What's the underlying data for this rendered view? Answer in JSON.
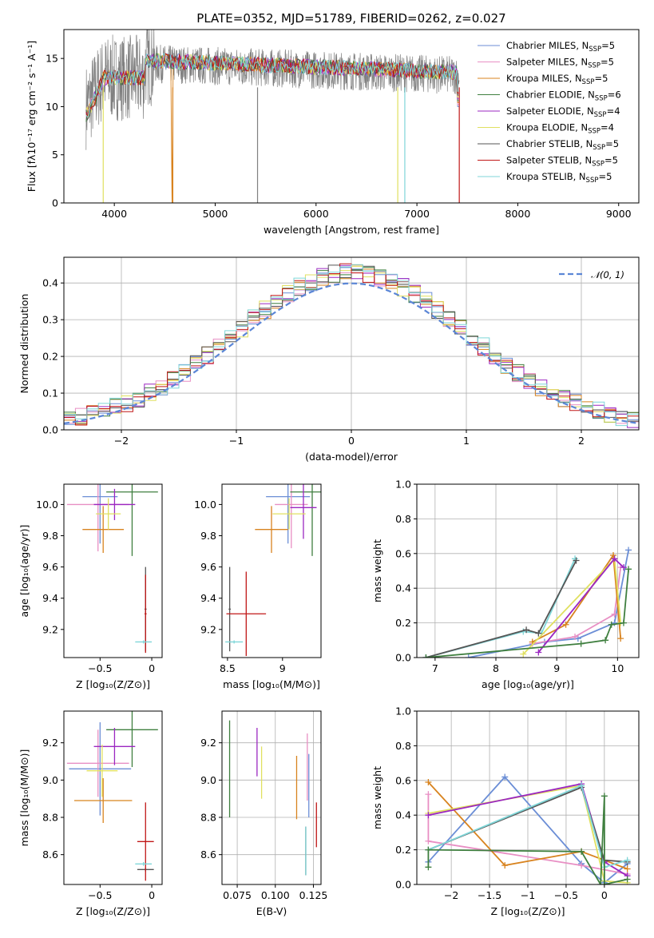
{
  "title": "PLATE=0352, MJD=51789, FIBERID=0262, z=0.027",
  "colors": [
    "#6b8ed6",
    "#e88fc4",
    "#d8831f",
    "#3f7f3f",
    "#9b27c1",
    "#e0e060",
    "#555555",
    "#c01717",
    "#7fd6d8"
  ],
  "chart_data": [
    {
      "id": "spectrum",
      "type": "line",
      "xlabel": "wavelength [Angstrom, rest frame]",
      "ylabel": "Flux [fλ10⁻¹⁷ erg cm⁻² s⁻¹ A⁻¹]",
      "xlim": [
        3500,
        9200
      ],
      "ylim": [
        0,
        18
      ],
      "xticks": [
        4000,
        5000,
        6000,
        7000,
        8000,
        9000
      ],
      "yticks": [
        0,
        5,
        10,
        15
      ],
      "grid": false,
      "legend_position": "top-right",
      "observed_series": {
        "color": "#808080",
        "x_range": [
          3720,
          7420
        ],
        "mean_level": 14.5
      },
      "series": [
        {
          "name": "Chabrier MILES, N",
          "sub": "SSP",
          "suffix": "=5",
          "color": "#6b8ed6"
        },
        {
          "name": "Salpeter MILES, N",
          "sub": "SSP",
          "suffix": "=5",
          "color": "#e88fc4"
        },
        {
          "name": "Kroupa MILES, N",
          "sub": "SSP",
          "suffix": "=5",
          "color": "#d8831f"
        },
        {
          "name": "Chabrier ELODIE, N",
          "sub": "SSP",
          "suffix": "=6",
          "color": "#3f7f3f"
        },
        {
          "name": "Salpeter ELODIE, N",
          "sub": "SSP",
          "suffix": "=4",
          "color": "#9b27c1"
        },
        {
          "name": "Kroupa ELODIE, N",
          "sub": "SSP",
          "suffix": "=4",
          "color": "#e0e060"
        },
        {
          "name": "Chabrier STELIB, N",
          "sub": "SSP",
          "suffix": "=5",
          "color": "#555555"
        },
        {
          "name": "Salpeter STELIB, N",
          "sub": "SSP",
          "suffix": "=5",
          "color": "#c01717"
        },
        {
          "name": "Kroupa STELIB, N",
          "sub": "SSP",
          "suffix": "=5",
          "color": "#7fd6d8"
        }
      ]
    },
    {
      "id": "residuals",
      "type": "histogram",
      "xlabel": "(data-model)/error",
      "ylabel": "Normed distribution",
      "xlim": [
        -2.5,
        2.5
      ],
      "ylim": [
        0,
        0.47
      ],
      "xticks": [
        -2,
        -1,
        0,
        1,
        2
      ],
      "yticks": [
        0.0,
        0.1,
        0.2,
        0.3,
        0.4
      ],
      "grid": true,
      "bin_width": 0.1,
      "legend_position": "top-right",
      "reference": {
        "label": "𝒩(0, 1)",
        "color": "#5b86d6",
        "mean": 0,
        "sigma": 1
      }
    },
    {
      "id": "age-vs-z",
      "type": "errorbar",
      "xlabel": "Z [log₁₀(Z/Z⊙)]",
      "ylabel": "age  [log₁₀(age/yr)]",
      "xlim": [
        -0.85,
        0.1
      ],
      "ylim": [
        9.02,
        10.13
      ],
      "xticks": [
        -0.5,
        0.0
      ],
      "yticks": [
        9.2,
        9.4,
        9.6,
        9.8,
        10.0
      ],
      "grid": false,
      "points": [
        {
          "color": "#6b8ed6",
          "x": -0.5,
          "xerr": 0.17,
          "y": 10.05,
          "yerr": 0.3
        },
        {
          "color": "#e88fc4",
          "x": -0.52,
          "xerr": 0.3,
          "y": 10.0,
          "yerr": 0.3
        },
        {
          "color": "#d8831f",
          "x": -0.47,
          "xerr": 0.2,
          "y": 9.84,
          "yerr": 0.15
        },
        {
          "color": "#3f7f3f",
          "x": -0.19,
          "xerr": 0.25,
          "y": 10.08,
          "yerr": 0.41
        },
        {
          "color": "#9b27c1",
          "x": -0.36,
          "xerr": 0.2,
          "y": 10.0,
          "yerr": 0.1
        },
        {
          "color": "#e0e060",
          "x": -0.42,
          "xerr": 0.12,
          "y": 9.94,
          "yerr": 0.1
        },
        {
          "color": "#555555",
          "x": -0.06,
          "xerr": 0.01,
          "y": 9.33,
          "yerr": 0.27
        },
        {
          "color": "#c01717",
          "x": -0.06,
          "xerr": 0.01,
          "y": 9.3,
          "yerr": 0.25
        },
        {
          "color": "#7fd6d8",
          "x": -0.08,
          "xerr": 0.08,
          "y": 9.12,
          "yerr": 0.01
        }
      ]
    },
    {
      "id": "age-vs-mass",
      "type": "errorbar",
      "xlabel": "mass [log₁₀(M/M⊙)]",
      "ylabel": "",
      "xlim": [
        8.45,
        9.35
      ],
      "ylim": [
        9.02,
        10.13
      ],
      "xticks": [
        8.5,
        9.0
      ],
      "yticks": [
        9.2,
        9.4,
        9.6,
        9.8,
        10.0
      ],
      "grid": false,
      "points": [
        {
          "color": "#6b8ed6",
          "x": 9.05,
          "xerr": 0.2,
          "y": 10.05,
          "yerr": 0.3
        },
        {
          "color": "#e88fc4",
          "x": 9.08,
          "xerr": 0.15,
          "y": 10.0,
          "yerr": 0.28
        },
        {
          "color": "#d8831f",
          "x": 8.9,
          "xerr": 0.15,
          "y": 9.84,
          "yerr": 0.15
        },
        {
          "color": "#3f7f3f",
          "x": 9.27,
          "xerr": 0.2,
          "y": 10.08,
          "yerr": 0.41
        },
        {
          "color": "#9b27c1",
          "x": 9.19,
          "xerr": 0.12,
          "y": 9.98,
          "yerr": 0.2
        },
        {
          "color": "#e0e060",
          "x": 9.06,
          "xerr": 0.15,
          "y": 9.94,
          "yerr": 0.1
        },
        {
          "color": "#555555",
          "x": 8.52,
          "xerr": 0.01,
          "y": 9.33,
          "yerr": 0.27
        },
        {
          "color": "#c01717",
          "x": 8.67,
          "xerr": 0.18,
          "y": 9.3,
          "yerr": 0.27
        },
        {
          "color": "#7fd6d8",
          "x": 8.56,
          "xerr": 0.08,
          "y": 9.12,
          "yerr": 0.01
        }
      ]
    },
    {
      "id": "weight-vs-age",
      "type": "line",
      "xlabel": "age  [log₁₀(age/yr)]",
      "ylabel": "mass weight",
      "xlim": [
        6.7,
        10.35
      ],
      "ylim": [
        0.0,
        1.0
      ],
      "xticks": [
        7,
        8,
        9,
        10
      ],
      "yticks": [
        0.0,
        0.2,
        0.4,
        0.6,
        0.8,
        1.0
      ],
      "grid": true,
      "series": [
        {
          "color": "#7fd6d8",
          "x": [
            6.85,
            8.45,
            8.75,
            9.3
          ],
          "y": [
            0.0,
            0.15,
            0.14,
            0.57
          ]
        },
        {
          "color": "#555555",
          "x": [
            6.85,
            8.5,
            8.7,
            9.32
          ],
          "y": [
            0.0,
            0.16,
            0.14,
            0.56
          ]
        },
        {
          "color": "#6b8ed6",
          "x": [
            7.55,
            8.8,
            9.35,
            9.95,
            10.18
          ],
          "y": [
            0.0,
            0.09,
            0.11,
            0.2,
            0.62
          ]
        },
        {
          "color": "#e88fc4",
          "x": [
            8.6,
            9.3,
            9.95,
            10.05
          ],
          "y": [
            0.08,
            0.12,
            0.25,
            0.52
          ]
        },
        {
          "color": "#d8831f",
          "x": [
            8.6,
            9.15,
            9.93,
            10.05
          ],
          "y": [
            0.09,
            0.19,
            0.59,
            0.11
          ]
        },
        {
          "color": "#e0e060",
          "x": [
            8.45,
            9.95,
            10.05
          ],
          "y": [
            0.02,
            0.57,
            0.2
          ]
        },
        {
          "color": "#9b27c1",
          "x": [
            8.7,
            9.95,
            10.1
          ],
          "y": [
            0.03,
            0.57,
            0.52
          ]
        },
        {
          "color": "#3f7f3f",
          "x": [
            6.85,
            9.4,
            9.8,
            9.9,
            10.1,
            10.18
          ],
          "y": [
            0.0,
            0.08,
            0.1,
            0.19,
            0.2,
            0.51
          ]
        }
      ]
    },
    {
      "id": "mass-vs-z",
      "type": "errorbar",
      "xlabel": "Z [log₁₀(Z/Z⊙)]",
      "ylabel": "mass [log₁₀(M/M⊙)]",
      "xlim": [
        -0.85,
        0.1
      ],
      "ylim": [
        8.44,
        9.37
      ],
      "xticks": [
        -0.5,
        0.0
      ],
      "yticks": [
        8.6,
        8.8,
        9.0,
        9.2
      ],
      "grid": false,
      "points": [
        {
          "color": "#6b8ed6",
          "x": -0.5,
          "xerr": 0.3,
          "y": 9.06,
          "yerr": 0.25
        },
        {
          "color": "#e88fc4",
          "x": -0.52,
          "xerr": 0.3,
          "y": 9.09,
          "yerr": 0.18
        },
        {
          "color": "#d8831f",
          "x": -0.47,
          "xerr": 0.28,
          "y": 8.89,
          "yerr": 0.12
        },
        {
          "color": "#3f7f3f",
          "x": -0.19,
          "xerr": 0.25,
          "y": 9.27,
          "yerr": 0.2
        },
        {
          "color": "#9b27c1",
          "x": -0.36,
          "xerr": 0.2,
          "y": 9.18,
          "yerr": 0.1
        },
        {
          "color": "#e0e060",
          "x": -0.48,
          "xerr": 0.15,
          "y": 9.05,
          "yerr": 0.14
        },
        {
          "color": "#555555",
          "x": -0.06,
          "xerr": 0.08,
          "y": 8.52,
          "yerr": 0.01
        },
        {
          "color": "#c01717",
          "x": -0.06,
          "xerr": 0.08,
          "y": 8.67,
          "yerr": 0.21
        },
        {
          "color": "#7fd6d8",
          "x": -0.08,
          "xerr": 0.08,
          "y": 8.55,
          "yerr": 0.01
        }
      ]
    },
    {
      "id": "mass-vs-ebv",
      "type": "errorbar",
      "xlabel": "E(B-V)",
      "ylabel": "",
      "xlim": [
        0.065,
        0.13
      ],
      "ylim": [
        8.44,
        9.37
      ],
      "xticks": [
        0.075,
        0.1,
        0.125
      ],
      "xticklabels": [
        "0.075",
        "0.100",
        "0.125"
      ],
      "yticks": [
        8.6,
        8.8,
        9.0,
        9.2
      ],
      "grid": true,
      "points": [
        {
          "color": "#6b8ed6",
          "x": 0.122,
          "y": 8.97,
          "yerr": 0.17
        },
        {
          "color": "#e88fc4",
          "x": 0.121,
          "y": 9.07,
          "yerr": 0.18
        },
        {
          "color": "#d8831f",
          "x": 0.114,
          "y": 8.96,
          "yerr": 0.17
        },
        {
          "color": "#3f7f3f",
          "x": 0.07,
          "y": 9.06,
          "yerr": 0.26
        },
        {
          "color": "#9b27c1",
          "x": 0.088,
          "y": 9.15,
          "yerr": 0.13
        },
        {
          "color": "#e0e060",
          "x": 0.091,
          "y": 9.04,
          "yerr": 0.14
        },
        {
          "color": "#555555",
          "x": 0.12,
          "y": 8.62,
          "yerr": 0.13
        },
        {
          "color": "#c01717",
          "x": 0.127,
          "y": 8.76,
          "yerr": 0.12
        },
        {
          "color": "#7fd6d8",
          "x": 0.12,
          "y": 8.62,
          "yerr": 0.13
        }
      ]
    },
    {
      "id": "weight-vs-z",
      "type": "line",
      "xlabel": "Z [log₁₀(Z/Z⊙)]",
      "ylabel": "mass weight",
      "xlim": [
        -2.45,
        0.45
      ],
      "ylim": [
        0.0,
        1.0
      ],
      "xticks": [
        -2.0,
        -1.5,
        -1.0,
        -0.5,
        0.0
      ],
      "yticks": [
        0.0,
        0.2,
        0.4,
        0.6,
        0.8,
        1.0
      ],
      "grid": true,
      "series": [
        {
          "color": "#6b8ed6",
          "x": [
            -2.3,
            -1.3,
            -0.3,
            0.0,
            0.3
          ],
          "y": [
            0.13,
            0.62,
            0.12,
            0.01,
            0.12
          ]
        },
        {
          "color": "#e88fc4",
          "x": [
            -2.3,
            -2.3,
            -0.3,
            0.3
          ],
          "y": [
            0.52,
            0.25,
            0.11,
            0.06
          ]
        },
        {
          "color": "#d8831f",
          "x": [
            -2.3,
            -1.3,
            -0.3,
            0.3
          ],
          "y": [
            0.59,
            0.11,
            0.19,
            0.09
          ]
        },
        {
          "color": "#e0e060",
          "x": [
            -2.3,
            -0.3,
            0.0,
            0.3
          ],
          "y": [
            0.41,
            0.57,
            0.02,
            0.01
          ]
        },
        {
          "color": "#9b27c1",
          "x": [
            -2.3,
            -0.3,
            0.0,
            0.3
          ],
          "y": [
            0.4,
            0.58,
            0.13,
            0.05
          ]
        },
        {
          "color": "#555555",
          "x": [
            -2.3,
            -0.3,
            0.0,
            0.3
          ],
          "y": [
            0.2,
            0.56,
            0.14,
            0.13
          ]
        },
        {
          "color": "#7fd6d8",
          "x": [
            -2.3,
            -0.3,
            0.0,
            0.3
          ],
          "y": [
            0.2,
            0.57,
            0.1,
            0.14
          ]
        },
        {
          "color": "#3f7f3f",
          "x": [
            -2.3,
            -2.3,
            -0.3,
            -0.05,
            0.0,
            0.0,
            0.3
          ],
          "y": [
            0.1,
            0.2,
            0.19,
            0.0,
            0.51,
            0.0,
            0.03
          ]
        }
      ]
    }
  ]
}
